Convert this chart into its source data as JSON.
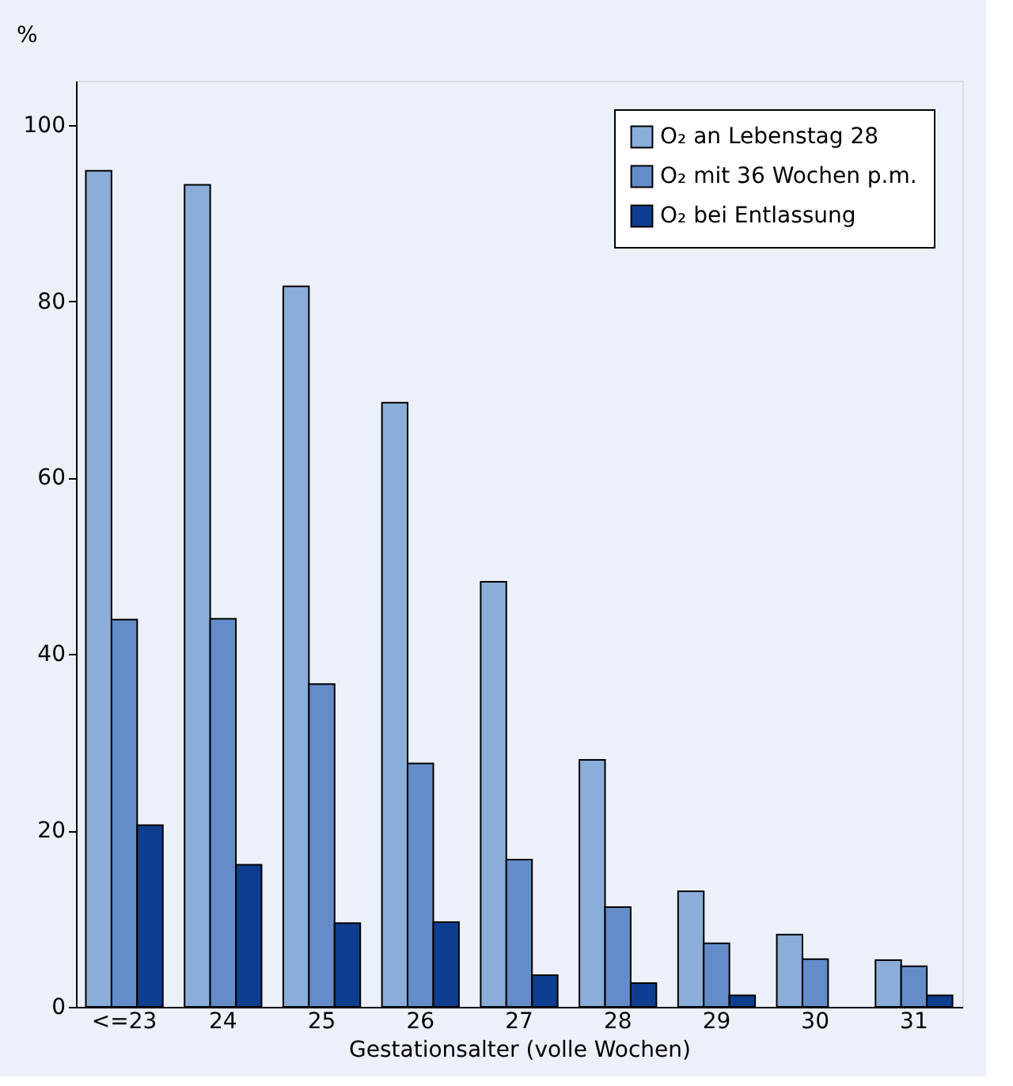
{
  "chart_data": {
    "type": "bar",
    "xlabel": "Gestationsalter (volle Wochen)",
    "ylabel": "%",
    "categories": [
      "<=23",
      "24",
      "25",
      "26",
      "27",
      "28",
      "29",
      "30",
      "31"
    ],
    "series": [
      {
        "name": "O₂ an Lebenstag 28",
        "color": "#8aadda",
        "values": [
          94.8,
          93.2,
          81.7,
          68.5,
          48.2,
          28,
          13.1,
          8.2,
          5.3
        ]
      },
      {
        "name": "O₂ mit 36 Wochen p.m.",
        "color": "#648cc8",
        "values": [
          43.9,
          44,
          36.6,
          27.6,
          16.7,
          11.3,
          7.2,
          5.4,
          4.6
        ]
      },
      {
        "name": "O₂ bei Entlassung",
        "color": "#0f3d8f",
        "values": [
          20.6,
          16.1,
          9.5,
          9.6,
          3.6,
          2.7,
          1.3,
          null,
          1.3
        ]
      }
    ],
    "ylim": [
      0,
      105
    ],
    "yticks": [
      0,
      20,
      40,
      60,
      80,
      100
    ],
    "grid": false,
    "legend": "top right"
  }
}
